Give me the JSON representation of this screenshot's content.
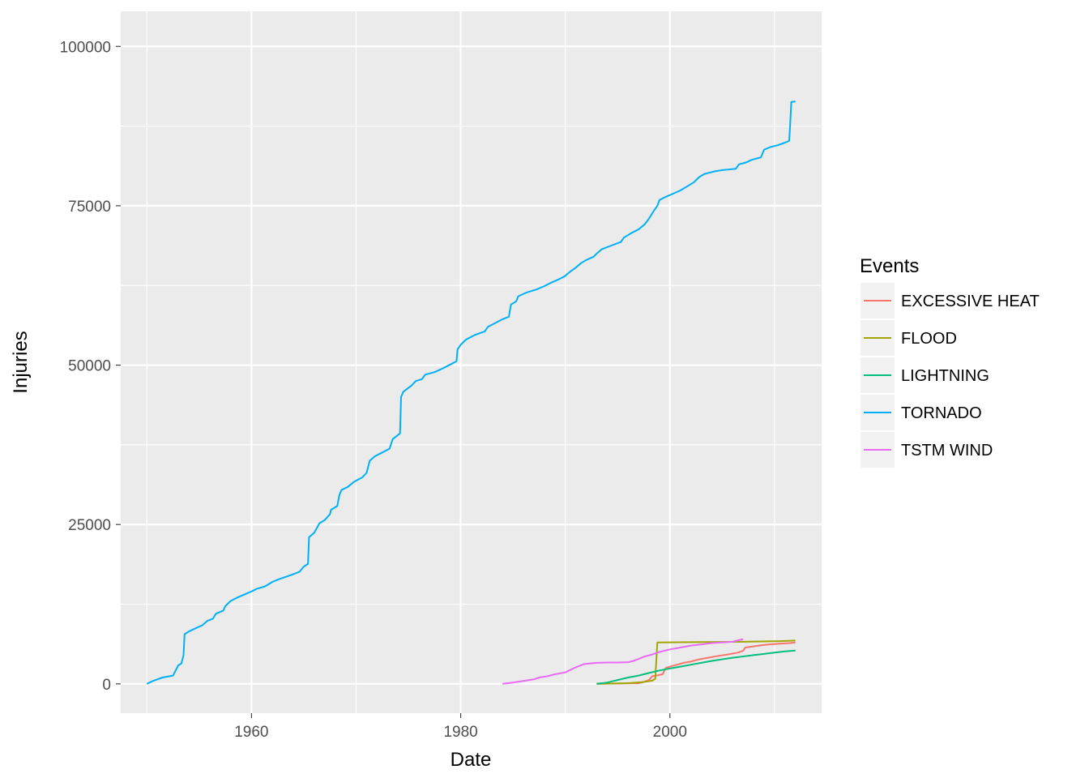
{
  "chart_data": {
    "type": "line",
    "title": "",
    "xlabel": "Date",
    "ylabel": "Injuries",
    "xlim": [
      1947.5,
      2014.5
    ],
    "ylim": [
      -4600,
      105500
    ],
    "x_major_ticks": [
      1960,
      1980,
      2000
    ],
    "x_minor_ticks": [
      1950,
      1970,
      1990,
      2010
    ],
    "y_major_ticks": [
      0,
      25000,
      50000,
      75000,
      100000
    ],
    "y_minor_ticks": [
      12500,
      37500,
      62500,
      87500
    ],
    "x_tick_labels": [
      "1960",
      "1980",
      "2000"
    ],
    "y_tick_labels": [
      "0",
      "25000",
      "50000",
      "75000",
      "100000"
    ],
    "grid": true,
    "legend": {
      "title": "Events",
      "position": "right",
      "entries": [
        "EXCESSIVE HEAT",
        "FLOOD",
        "LIGHTNING",
        "TORNADO",
        "TSTM WIND"
      ]
    },
    "series": [
      {
        "name": "EXCESSIVE HEAT",
        "color": "#F8766D",
        "points": [
          [
            1993.0,
            0
          ],
          [
            1997.0,
            100
          ],
          [
            1997.5,
            300
          ],
          [
            1998.0,
            600
          ],
          [
            1998.3,
            1200
          ],
          [
            1998.7,
            1300
          ],
          [
            1999.3,
            1500
          ],
          [
            1999.6,
            2500
          ],
          [
            2000.2,
            2800
          ],
          [
            2000.7,
            3000
          ],
          [
            2001.3,
            3300
          ],
          [
            2002.0,
            3500
          ],
          [
            2002.7,
            3800
          ],
          [
            2003.3,
            4000
          ],
          [
            2004.0,
            4200
          ],
          [
            2004.7,
            4400
          ],
          [
            2005.5,
            4600
          ],
          [
            2006.5,
            4900
          ],
          [
            2007.0,
            5200
          ],
          [
            2007.2,
            5700
          ],
          [
            2008.5,
            6000
          ],
          [
            2009.5,
            6200
          ],
          [
            2010.5,
            6300
          ],
          [
            2011.5,
            6400
          ],
          [
            2012.0,
            6500
          ]
        ]
      },
      {
        "name": "FLOOD",
        "color": "#A3A500",
        "points": [
          [
            1993.0,
            0
          ],
          [
            1996.0,
            100
          ],
          [
            1997.5,
            300
          ],
          [
            1998.3,
            500
          ],
          [
            1998.6,
            800
          ],
          [
            1998.8,
            6500
          ],
          [
            2003.0,
            6550
          ],
          [
            2007.0,
            6600
          ],
          [
            2010.5,
            6700
          ],
          [
            2012.0,
            6790
          ]
        ]
      },
      {
        "name": "LIGHTNING",
        "color": "#00BF7D",
        "points": [
          [
            1993.0,
            0
          ],
          [
            1994.0,
            200
          ],
          [
            1995.0,
            600
          ],
          [
            1996.0,
            1000
          ],
          [
            1997.0,
            1300
          ],
          [
            1998.0,
            1700
          ],
          [
            1999.0,
            2100
          ],
          [
            2000.0,
            2400
          ],
          [
            2001.0,
            2700
          ],
          [
            2002.0,
            3000
          ],
          [
            2003.0,
            3300
          ],
          [
            2004.0,
            3600
          ],
          [
            2005.0,
            3850
          ],
          [
            2006.0,
            4100
          ],
          [
            2007.0,
            4300
          ],
          [
            2008.0,
            4500
          ],
          [
            2009.0,
            4700
          ],
          [
            2010.0,
            4900
          ],
          [
            2011.0,
            5100
          ],
          [
            2012.0,
            5230
          ]
        ]
      },
      {
        "name": "TORNADO",
        "color": "#00B0F6",
        "points": [
          [
            1950.0,
            0
          ],
          [
            1950.5,
            400
          ],
          [
            1951.0,
            700
          ],
          [
            1951.5,
            1000
          ],
          [
            1952.5,
            1300
          ],
          [
            1953.0,
            2900
          ],
          [
            1953.3,
            3200
          ],
          [
            1953.5,
            4500
          ],
          [
            1953.6,
            7800
          ],
          [
            1954.0,
            8200
          ],
          [
            1954.5,
            8600
          ],
          [
            1955.3,
            9200
          ],
          [
            1955.8,
            9900
          ],
          [
            1956.3,
            10200
          ],
          [
            1956.6,
            11000
          ],
          [
            1957.3,
            11500
          ],
          [
            1957.5,
            12200
          ],
          [
            1958.0,
            13000
          ],
          [
            1958.6,
            13500
          ],
          [
            1959.3,
            14000
          ],
          [
            1960.0,
            14500
          ],
          [
            1960.5,
            14900
          ],
          [
            1961.3,
            15300
          ],
          [
            1962.0,
            16000
          ],
          [
            1962.6,
            16400
          ],
          [
            1963.3,
            16800
          ],
          [
            1964.0,
            17200
          ],
          [
            1964.6,
            17600
          ],
          [
            1965.0,
            18400
          ],
          [
            1965.4,
            18800
          ],
          [
            1965.5,
            23000
          ],
          [
            1966.0,
            23700
          ],
          [
            1966.5,
            25200
          ],
          [
            1967.0,
            25700
          ],
          [
            1967.5,
            26600
          ],
          [
            1967.6,
            27300
          ],
          [
            1968.2,
            27900
          ],
          [
            1968.4,
            29600
          ],
          [
            1968.6,
            30400
          ],
          [
            1969.2,
            30900
          ],
          [
            1969.8,
            31700
          ],
          [
            1970.6,
            32400
          ],
          [
            1971.0,
            33100
          ],
          [
            1971.3,
            35000
          ],
          [
            1971.8,
            35700
          ],
          [
            1972.5,
            36300
          ],
          [
            1973.2,
            36900
          ],
          [
            1973.5,
            38400
          ],
          [
            1973.9,
            38900
          ],
          [
            1974.2,
            39300
          ],
          [
            1974.3,
            45000
          ],
          [
            1974.5,
            45800
          ],
          [
            1975.3,
            46800
          ],
          [
            1975.7,
            47500
          ],
          [
            1976.3,
            47800
          ],
          [
            1976.6,
            48500
          ],
          [
            1977.5,
            48900
          ],
          [
            1978.3,
            49500
          ],
          [
            1979.0,
            50100
          ],
          [
            1979.6,
            50600
          ],
          [
            1979.7,
            52500
          ],
          [
            1980.0,
            53200
          ],
          [
            1980.5,
            54000
          ],
          [
            1981.3,
            54700
          ],
          [
            1982.3,
            55300
          ],
          [
            1982.6,
            56000
          ],
          [
            1983.3,
            56600
          ],
          [
            1984.0,
            57200
          ],
          [
            1984.6,
            57600
          ],
          [
            1984.8,
            59500
          ],
          [
            1985.3,
            60000
          ],
          [
            1985.5,
            60800
          ],
          [
            1986.3,
            61400
          ],
          [
            1987.3,
            61900
          ],
          [
            1988.0,
            62400
          ],
          [
            1988.6,
            62900
          ],
          [
            1989.3,
            63400
          ],
          [
            1989.9,
            63900
          ],
          [
            1990.5,
            64700
          ],
          [
            1991.0,
            65300
          ],
          [
            1991.5,
            66000
          ],
          [
            1992.0,
            66500
          ],
          [
            1992.7,
            67000
          ],
          [
            1993.0,
            67500
          ],
          [
            1993.5,
            68200
          ],
          [
            1994.3,
            68700
          ],
          [
            1995.3,
            69300
          ],
          [
            1995.6,
            70000
          ],
          [
            1996.3,
            70700
          ],
          [
            1997.0,
            71300
          ],
          [
            1997.6,
            72100
          ],
          [
            1998.0,
            73000
          ],
          [
            1998.5,
            74300
          ],
          [
            1998.8,
            75000
          ],
          [
            1999.0,
            75900
          ],
          [
            1999.6,
            76400
          ],
          [
            2000.3,
            76900
          ],
          [
            2001.0,
            77400
          ],
          [
            2001.6,
            78000
          ],
          [
            2002.3,
            78700
          ],
          [
            2002.8,
            79500
          ],
          [
            2003.3,
            80000
          ],
          [
            2004.3,
            80400
          ],
          [
            2005.0,
            80600
          ],
          [
            2006.3,
            80800
          ],
          [
            2006.6,
            81500
          ],
          [
            2007.3,
            81800
          ],
          [
            2007.8,
            82200
          ],
          [
            2008.7,
            82600
          ],
          [
            2009.0,
            83800
          ],
          [
            2009.6,
            84200
          ],
          [
            2010.3,
            84500
          ],
          [
            2011.0,
            84900
          ],
          [
            2011.4,
            85200
          ],
          [
            2011.5,
            88000
          ],
          [
            2011.6,
            91300
          ],
          [
            2012.0,
            91350
          ]
        ]
      },
      {
        "name": "TSTM WIND",
        "color": "#E76BF3",
        "points": [
          [
            1984.0,
            0
          ],
          [
            1985.0,
            200
          ],
          [
            1986.0,
            450
          ],
          [
            1987.0,
            700
          ],
          [
            1987.5,
            1000
          ],
          [
            1988.3,
            1200
          ],
          [
            1989.0,
            1500
          ],
          [
            1990.0,
            1800
          ],
          [
            1990.5,
            2200
          ],
          [
            1991.0,
            2600
          ],
          [
            1991.8,
            3100
          ],
          [
            1993.0,
            3300
          ],
          [
            1994.0,
            3350
          ],
          [
            1995.0,
            3350
          ],
          [
            1996.0,
            3400
          ],
          [
            1996.5,
            3600
          ],
          [
            1997.0,
            3900
          ],
          [
            1997.6,
            4300
          ],
          [
            1998.3,
            4600
          ],
          [
            1999.0,
            5000
          ],
          [
            2000.0,
            5400
          ],
          [
            2001.0,
            5700
          ],
          [
            2002.0,
            6000
          ],
          [
            2003.0,
            6200
          ],
          [
            2004.0,
            6400
          ],
          [
            2005.0,
            6500
          ],
          [
            2006.0,
            6600
          ],
          [
            2006.8,
            6950
          ],
          [
            2007.0,
            7000
          ]
        ]
      }
    ]
  }
}
